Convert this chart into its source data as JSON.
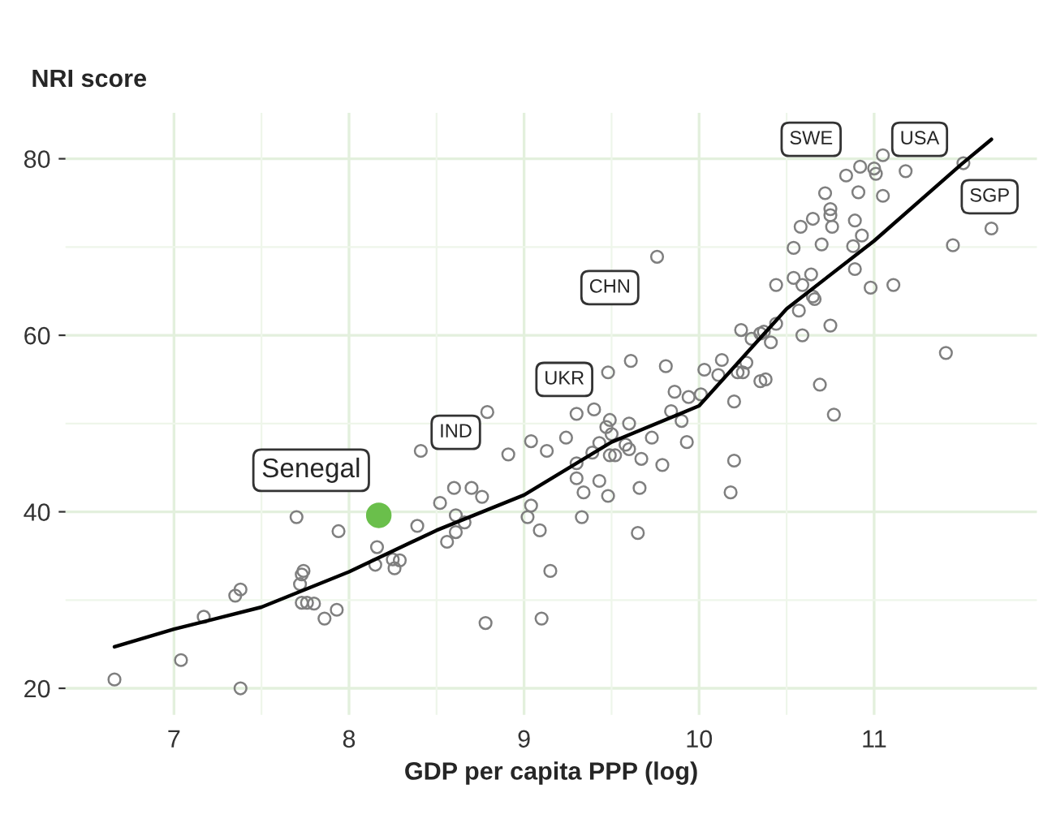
{
  "chart_data": {
    "type": "scatter",
    "title": "NRI score",
    "xlabel": "GDP per capita PPP (log)",
    "xlim": [
      6.38,
      11.93
    ],
    "ylim": [
      17,
      85.2
    ],
    "xticks": [
      7,
      8,
      9,
      10,
      11
    ],
    "yticks": [
      20,
      40,
      60,
      80
    ],
    "grid": true,
    "marker": "circle",
    "series": [
      {
        "color": "#7f7f7f",
        "x": [
          6.66,
          7.04,
          7.38,
          7.17,
          7.35,
          7.38,
          7.7,
          7.74,
          7.73,
          7.72,
          7.73,
          7.76,
          7.8,
          7.86,
          7.93,
          7.94,
          8.16,
          8.15,
          8.26,
          8.29,
          8.25,
          8.39,
          8.41,
          8.79,
          8.52,
          8.6,
          8.7,
          8.76,
          8.61,
          8.66,
          8.61,
          8.56,
          8.91,
          9.04,
          9.13,
          9.04,
          9.02,
          9.09,
          9.15,
          8.78,
          9.1,
          9.24,
          9.3,
          9.4,
          9.48,
          9.61,
          9.81,
          9.49,
          9.47,
          9.5,
          9.6,
          9.43,
          9.39,
          9.49,
          9.52,
          9.58,
          9.6,
          9.67,
          9.73,
          9.79,
          9.93,
          9.84,
          9.9,
          9.94,
          9.86,
          10.01,
          10.03,
          9.3,
          9.3,
          9.43,
          9.34,
          9.48,
          9.66,
          9.33,
          9.65,
          9.76,
          10.13,
          10.11,
          10.2,
          10.18,
          10.2,
          10.22,
          10.25,
          10.27,
          10.35,
          10.38,
          10.24,
          10.3,
          10.35,
          10.37,
          10.41,
          10.44,
          10.44,
          10.54,
          10.59,
          10.64,
          10.54,
          10.65,
          10.59,
          10.57,
          10.69,
          10.77,
          10.75,
          10.7,
          10.58,
          10.65,
          10.75,
          10.75,
          10.76,
          10.72,
          10.89,
          10.93,
          10.88,
          10.89,
          10.98,
          10.91,
          11.05,
          11.11,
          10.92,
          10.84,
          11.0,
          11.01,
          11.05,
          11.18,
          11.45,
          11.67,
          11.51,
          11.41,
          10.66
        ],
        "values": [
          21.0,
          23.2,
          20.0,
          28.1,
          30.5,
          31.2,
          39.4,
          33.3,
          32.9,
          31.8,
          29.7,
          29.7,
          29.6,
          27.9,
          28.9,
          37.8,
          36.0,
          34.0,
          33.6,
          34.5,
          34.6,
          38.4,
          46.9,
          51.3,
          41.0,
          42.7,
          42.7,
          41.7,
          39.6,
          38.8,
          37.7,
          36.6,
          46.5,
          48.0,
          46.9,
          40.7,
          39.4,
          37.9,
          33.3,
          27.4,
          27.9,
          48.4,
          51.1,
          51.6,
          55.8,
          57.1,
          56.5,
          50.4,
          49.6,
          48.8,
          50.0,
          47.8,
          46.7,
          46.4,
          46.4,
          47.6,
          47.1,
          46.0,
          48.4,
          45.3,
          47.9,
          51.4,
          50.3,
          53.0,
          53.6,
          53.3,
          56.1,
          45.5,
          43.8,
          43.5,
          42.2,
          41.8,
          42.7,
          39.4,
          37.6,
          68.9,
          57.2,
          55.5,
          45.8,
          42.2,
          52.5,
          55.8,
          55.8,
          56.9,
          54.8,
          55.0,
          60.6,
          59.6,
          60.2,
          60.4,
          59.2,
          61.3,
          65.7,
          66.5,
          65.7,
          66.9,
          69.9,
          64.4,
          60.0,
          62.8,
          54.4,
          51.0,
          61.1,
          70.3,
          72.3,
          73.2,
          74.3,
          73.6,
          72.3,
          76.1,
          73.0,
          71.3,
          70.1,
          67.5,
          65.4,
          76.2,
          75.8,
          65.7,
          79.1,
          78.1,
          78.9,
          78.3,
          80.4,
          78.6,
          70.2,
          72.1,
          79.5,
          58.0,
          64.1
        ]
      },
      {
        "type": "line",
        "color": "#000000",
        "marker": "none",
        "x": [
          6.66,
          7,
          7.5,
          8,
          8.5,
          9,
          9.5,
          10,
          10.5,
          11,
          11.5,
          11.67
        ],
        "values": [
          24.7,
          26.7,
          29.2,
          33.2,
          37.9,
          41.9,
          47.9,
          52.0,
          63.0,
          70.7,
          79.4,
          82.2
        ]
      },
      {
        "name": "Senegal",
        "color": "#6abf4b",
        "x": [
          8.17
        ],
        "values": [
          39.6
        ]
      }
    ],
    "annotations": [
      {
        "text": "IND",
        "x": 8.61,
        "y": 49.0
      },
      {
        "text": "UKR",
        "x": 9.23,
        "y": 55.0
      },
      {
        "text": "CHN",
        "x": 9.49,
        "y": 65.4
      },
      {
        "text": "SWE",
        "x": 10.64,
        "y": 82.2
      },
      {
        "text": "USA",
        "x": 11.26,
        "y": 82.2
      },
      {
        "text": "SGP",
        "x": 11.66,
        "y": 75.7
      }
    ]
  }
}
